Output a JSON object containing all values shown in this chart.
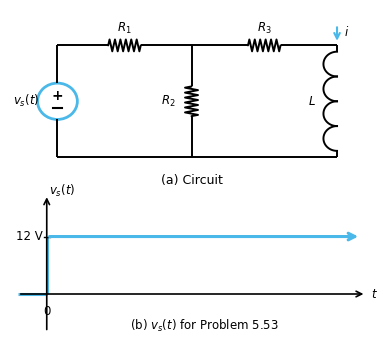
{
  "bg_color": "#ffffff",
  "circuit_color": "#000000",
  "signal_color": "#4ab8e8",
  "fig_width": 3.83,
  "fig_height": 3.43,
  "dpi": 100,
  "caption_a": "(a) Circuit",
  "caption_b": "(b) $v_s(t)$ for Problem 5.53",
  "label_vs": "$v_s(t)$",
  "label_R1": "$R_1$",
  "label_R2": "$R_2$",
  "label_R3": "$R_3$",
  "label_L": "$L$",
  "label_i": "$i$",
  "label_12V": "12 V",
  "label_0": "0",
  "label_t": "$t$",
  "label_vs_axis": "$v_s(t)$"
}
